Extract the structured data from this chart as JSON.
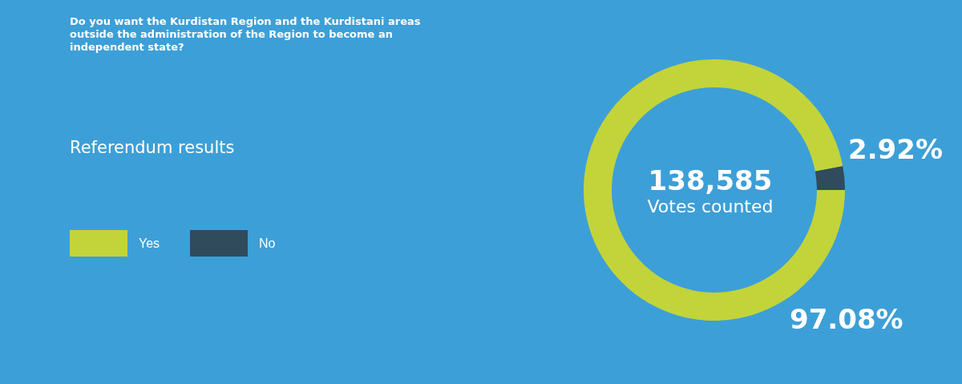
{
  "chart_data": {
    "type": "donut",
    "title": "Do you want the Kurdistan Region and the Kurdistani areas outside the administration of the Region to become an independent state?",
    "subtitle": "Referendum results",
    "categories": [
      "Yes",
      "No"
    ],
    "values": [
      97.08,
      2.92
    ],
    "colors": [
      "#c2d43a",
      "#2f4b5c"
    ],
    "value_labels": [
      "97.08%",
      "2.92%"
    ],
    "annotations": [
      "138,585",
      "Votes counted"
    ],
    "legend": "left"
  }
}
